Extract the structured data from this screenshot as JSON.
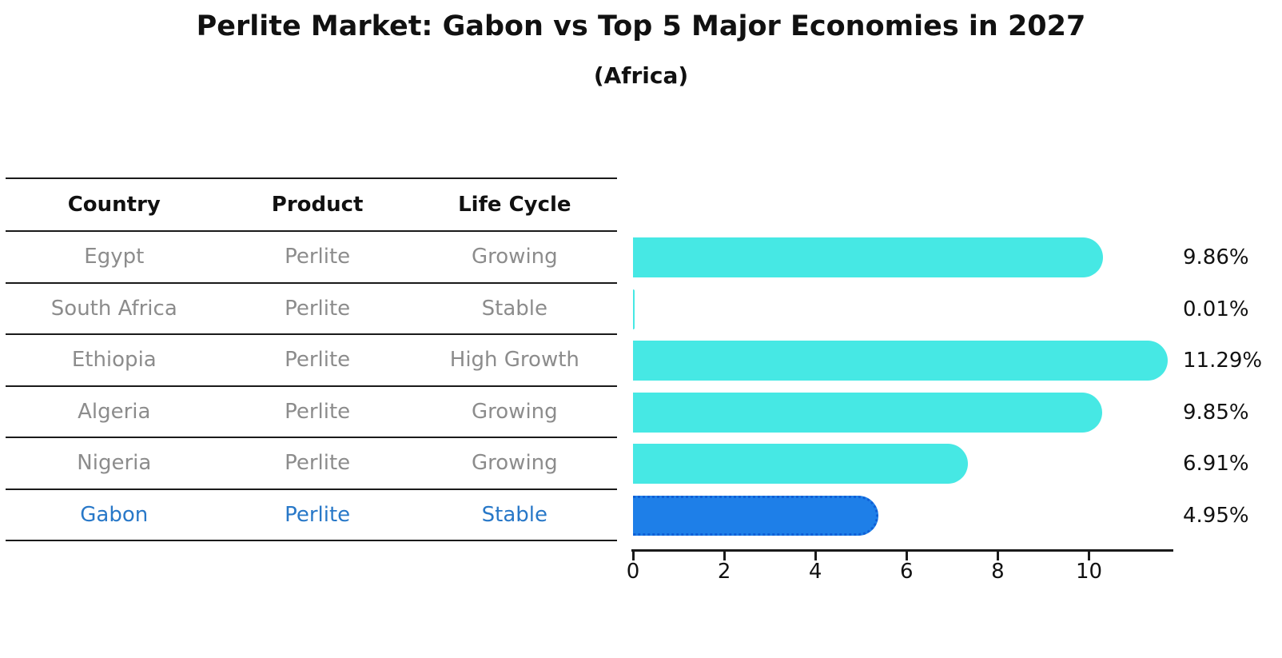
{
  "title": "Perlite Market: Gabon vs Top 5 Major Economies in 2027",
  "subtitle": "(Africa)",
  "table": {
    "headers": [
      "Country",
      "Product",
      "Life Cycle"
    ],
    "rows": [
      {
        "country": "Egypt",
        "product": "Perlite",
        "life_cycle": "Growing",
        "highlight": false
      },
      {
        "country": "South Africa",
        "product": "Perlite",
        "life_cycle": "Stable",
        "highlight": false
      },
      {
        "country": "Ethiopia",
        "product": "Perlite",
        "life_cycle": "High Growth",
        "highlight": false
      },
      {
        "country": "Algeria",
        "product": "Perlite",
        "life_cycle": "Growing",
        "highlight": false
      },
      {
        "country": "Nigeria",
        "product": "Perlite",
        "life_cycle": "Growing",
        "highlight": false
      },
      {
        "country": "Gabon",
        "product": "Perlite",
        "life_cycle": "Stable",
        "highlight": true
      }
    ]
  },
  "chart_data": {
    "type": "bar",
    "orientation": "horizontal",
    "title": "Perlite Market: Gabon vs Top 5 Major Economies in 2027",
    "subtitle": "(Africa)",
    "categories": [
      "Egypt",
      "South Africa",
      "Ethiopia",
      "Algeria",
      "Nigeria",
      "Gabon"
    ],
    "values": [
      9.86,
      0.01,
      11.29,
      9.85,
      6.91,
      4.95
    ],
    "value_labels": [
      "9.86%",
      "0.01%",
      "11.29%",
      "9.85%",
      "6.91%",
      "4.95%"
    ],
    "x_ticks": [
      0,
      2,
      4,
      6,
      8,
      10
    ],
    "xlim": [
      0,
      11.85
    ],
    "highlight_index": 5,
    "highlight_category": "Gabon",
    "grid": false,
    "legend": "none"
  },
  "colors": {
    "bar_default": "#46E8E4",
    "bar_highlight": "#1E7FE8",
    "bar_highlight_border": "#0F5FD6",
    "highlight_text": "#2878C8",
    "table_text": "#8C8C8C",
    "heading_text": "#111111",
    "axis": "#1A1A1A"
  }
}
